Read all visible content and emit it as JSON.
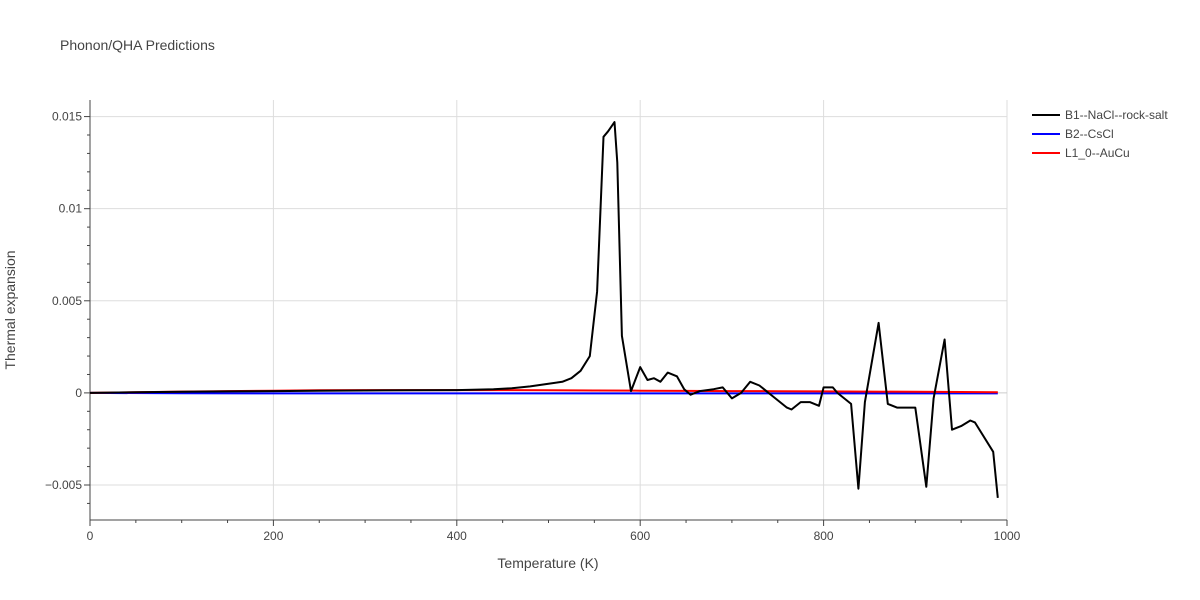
{
  "chart_data": {
    "type": "line",
    "title": "Phonon/QHA Predictions",
    "xlabel": "Temperature (K)",
    "ylabel": "Thermal expansion",
    "xlim": [
      0,
      1000
    ],
    "ylim": [
      -0.0069,
      0.0159
    ],
    "x_ticks": [
      0,
      200,
      400,
      600,
      800,
      1000
    ],
    "x_tick_labels": [
      "0",
      "200",
      "400",
      "600",
      "800",
      "1000"
    ],
    "y_ticks": [
      -0.005,
      0,
      0.005,
      0.01,
      0.015
    ],
    "y_tick_labels": [
      "−0.005",
      "0",
      "0.005",
      "0.01",
      "0.015"
    ],
    "grid": true,
    "legend_position": "top-right",
    "series": [
      {
        "name": "B1--NaCl--rock-salt",
        "color": "#000000",
        "x": [
          0,
          50,
          100,
          150,
          200,
          250,
          300,
          350,
          400,
          440,
          460,
          480,
          500,
          515,
          525,
          535,
          545,
          553,
          560,
          565,
          572,
          575,
          580,
          590,
          600,
          608,
          615,
          622,
          630,
          640,
          648,
          655,
          665,
          680,
          690,
          700,
          710,
          720,
          730,
          735,
          745,
          760,
          765,
          775,
          785,
          795,
          800,
          810,
          815,
          830,
          838,
          845,
          860,
          870,
          880,
          890,
          900,
          912,
          920,
          932,
          940,
          950,
          960,
          965,
          985,
          990
        ],
        "y": [
          0,
          3e-05,
          6e-05,
          8e-05,
          0.0001,
          0.00012,
          0.00013,
          0.00014,
          0.00015,
          0.0002,
          0.00025,
          0.00035,
          0.0005,
          0.0006,
          0.0008,
          0.0012,
          0.002,
          0.0055,
          0.0139,
          0.0142,
          0.0147,
          0.0125,
          0.0031,
          0.0001,
          0.0014,
          0.0007,
          0.0008,
          0.0006,
          0.0011,
          0.0009,
          0.0002,
          -0.0001,
          0.0001,
          0.0002,
          0.0003,
          -0.0003,
          0,
          0.0006,
          0.0004,
          0.0002,
          -0.0002,
          -0.0008,
          -0.0009,
          -0.0005,
          -0.0005,
          -0.0007,
          0.0003,
          0.0003,
          0,
          -0.0006,
          -0.0052,
          -0.0005,
          0.0038,
          -0.0006,
          -0.0008,
          -0.0008,
          -0.0008,
          -0.0051,
          -0.0003,
          0.0029,
          -0.002,
          -0.0018,
          -0.0015,
          -0.0016,
          -0.0032,
          -0.0057
        ]
      },
      {
        "name": "B2--CsCl",
        "color": "#0000ff",
        "x": [
          0,
          100,
          200,
          300,
          400,
          500,
          600,
          700,
          800,
          900,
          990
        ],
        "y": [
          0,
          -2e-05,
          -3e-05,
          -3e-05,
          -3e-05,
          -3e-05,
          -3e-05,
          -3e-05,
          -3e-05,
          -3e-05,
          -3e-05
        ]
      },
      {
        "name": "L1_0--AuCu",
        "color": "#ff0000",
        "x": [
          0,
          50,
          100,
          150,
          200,
          250,
          300,
          350,
          400,
          450,
          500,
          550,
          600,
          650,
          700,
          750,
          800,
          850,
          900,
          950,
          990
        ],
        "y": [
          0,
          3e-05,
          7e-05,
          0.0001,
          0.00012,
          0.00014,
          0.00015,
          0.00015,
          0.00015,
          0.00015,
          0.00014,
          0.00013,
          0.00012,
          0.00011,
          0.0001,
          9e-05,
          8e-05,
          7e-05,
          6e-05,
          5e-05,
          4e-05
        ]
      }
    ]
  }
}
